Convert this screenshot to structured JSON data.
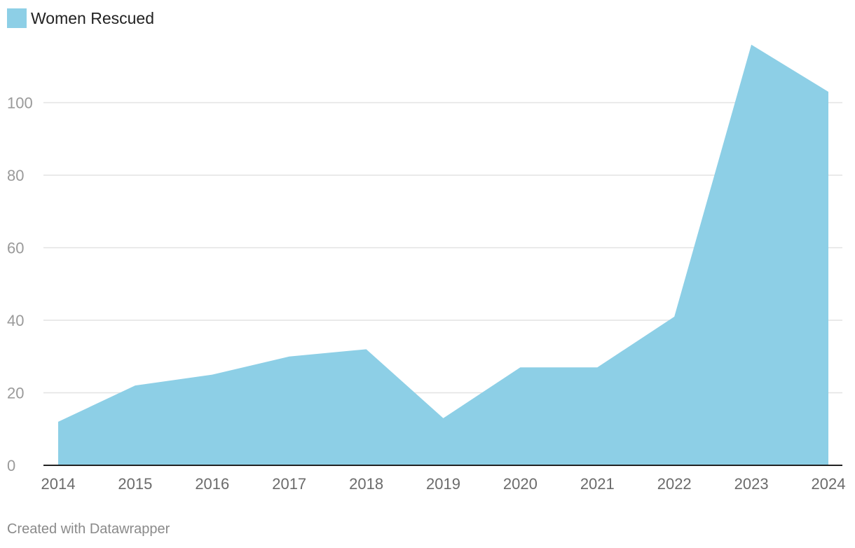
{
  "chart_data": {
    "type": "area",
    "x": [
      "2014",
      "2015",
      "2016",
      "2017",
      "2018",
      "2019",
      "2020",
      "2021",
      "2022",
      "2023",
      "2024"
    ],
    "series": [
      {
        "name": "Women Rescued",
        "values": [
          12,
          22,
          25,
          30,
          32,
          13,
          27,
          27,
          41,
          116,
          103
        ],
        "color": "#8dcfe6"
      }
    ],
    "ylim": [
      0,
      120
    ],
    "yticks": [
      0,
      20,
      40,
      60,
      80,
      100
    ],
    "grid": true,
    "legend_position": "top-left"
  },
  "footer": {
    "credit": "Created with Datawrapper"
  }
}
